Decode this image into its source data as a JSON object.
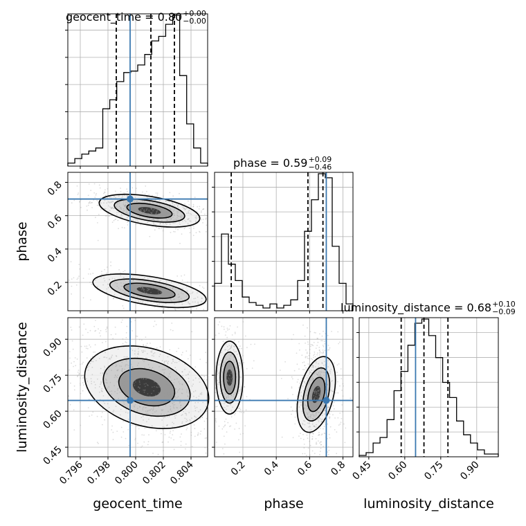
{
  "chart_data": {
    "type": "corner",
    "colors": {
      "truth": "#3a78b0",
      "hist": "#000000",
      "grid": "#b0b0b0",
      "points": "#9a9a9a"
    },
    "params": [
      {
        "name": "geocent_time",
        "label": "geocent_time",
        "range": [
          0.7951,
          0.8052
        ],
        "ticks": [
          "0.796",
          "0.798",
          "0.800",
          "0.802",
          "0.804"
        ],
        "tickvals": [
          0.796,
          0.798,
          0.8,
          0.802,
          0.804
        ],
        "truth": 0.7996
      },
      {
        "name": "phase",
        "label": "phase",
        "range": [
          0.03,
          0.86
        ],
        "ticks": [
          "0.2",
          "0.4",
          "0.6",
          "0.8"
        ],
        "tickvals": [
          0.2,
          0.4,
          0.6,
          0.8
        ],
        "truth": 0.7
      },
      {
        "name": "luminosity_distance",
        "label": "luminosity_distance",
        "range": [
          0.41,
          0.99
        ],
        "ticks": [
          "0.45",
          "0.60",
          "0.75",
          "0.90"
        ],
        "tickvals": [
          0.45,
          0.6,
          0.75,
          0.9
        ],
        "truth": 0.645
      }
    ],
    "titles": [
      {
        "name": "geocent_time",
        "value": "0.80",
        "plus": "+0.00",
        "minus": "−0.00"
      },
      {
        "name": "phase",
        "value": "0.59",
        "plus": "+0.09",
        "minus": "−0.46"
      },
      {
        "name": "luminosity_distance",
        "value": "0.68",
        "plus": "+0.10",
        "minus": "−0.09"
      }
    ],
    "quantiles": [
      [
        0.7986,
        0.8011,
        0.8028
      ],
      [
        0.13,
        0.59,
        0.68
      ],
      [
        0.585,
        0.68,
        0.78
      ]
    ],
    "histograms": [
      {
        "counts": [
          0.02,
          0.05,
          0.08,
          0.1,
          0.12,
          0.38,
          0.44,
          0.56,
          0.62,
          0.63,
          0.67,
          0.74,
          0.83,
          0.86,
          0.94,
          1.0,
          0.6,
          0.28,
          0.12,
          0.02
        ]
      },
      {
        "counts": [
          0.2,
          0.56,
          0.34,
          0.22,
          0.1,
          0.06,
          0.04,
          0.02,
          0.05,
          0.02,
          0.04,
          0.08,
          0.22,
          0.58,
          0.81,
          1.0,
          0.97,
          0.47,
          0.2,
          0.05
        ]
      },
      {
        "counts": [
          0.01,
          0.03,
          0.1,
          0.14,
          0.27,
          0.48,
          0.62,
          0.81,
          0.97,
          1.0,
          0.88,
          0.72,
          0.54,
          0.43,
          0.26,
          0.16,
          0.1,
          0.05,
          0.02,
          0.02
        ]
      }
    ],
    "pairs": [
      {
        "x": "geocent_time",
        "y": "phase"
      },
      {
        "x": "geocent_time",
        "y": "luminosity_distance"
      },
      {
        "x": "phase",
        "y": "luminosity_distance"
      }
    ]
  }
}
